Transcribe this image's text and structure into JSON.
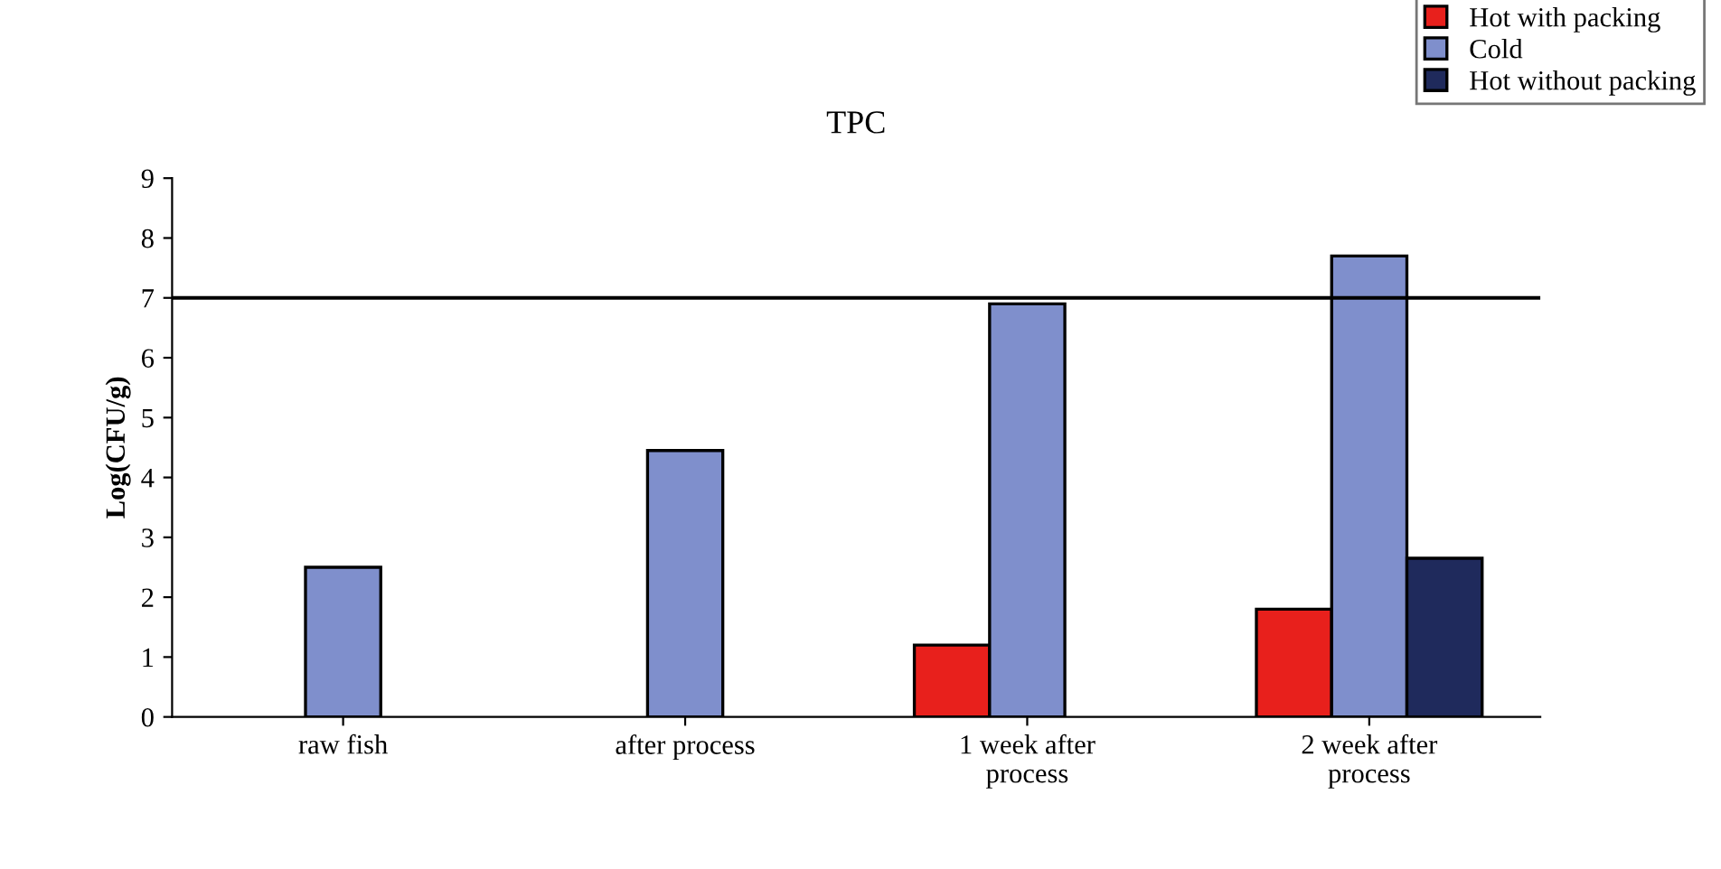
{
  "chart_data": {
    "type": "bar",
    "title": "TPC",
    "ylabel": "Log(CFU/g)",
    "categories": [
      "raw fish",
      "after process",
      "1 week after\nprocess",
      "2 week after\nprocess"
    ],
    "series": [
      {
        "name": "Hot with packing",
        "color": "#e8201c",
        "values": [
          null,
          null,
          1.2,
          1.8
        ]
      },
      {
        "name": "Cold",
        "color": "#7f8fcc",
        "values": [
          2.5,
          4.45,
          6.9,
          7.7
        ]
      },
      {
        "name": "Hot without packing",
        "color": "#1f2a5c",
        "values": [
          null,
          null,
          null,
          2.65
        ]
      }
    ],
    "ylim": [
      0,
      9
    ],
    "yticks": [
      0,
      1,
      2,
      3,
      4,
      5,
      6,
      7,
      8,
      9
    ],
    "ref_lines": [
      {
        "axis": "y",
        "value": 7,
        "color": "#000000",
        "line_style": "solid"
      }
    ],
    "grid": false,
    "legend": "top right"
  }
}
